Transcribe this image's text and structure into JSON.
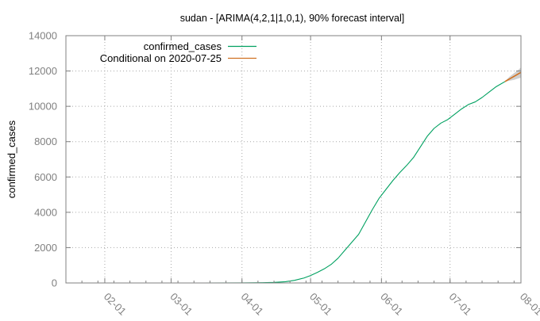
{
  "chart_data": {
    "type": "line",
    "title": "sudan -  [ARIMA(4,2,1|1,0,1), 90% forecast interval]",
    "xlabel": "",
    "ylabel": "confirmed_cases",
    "x_type": "date",
    "xlim": [
      "2020-01-15",
      "2020-08-01"
    ],
    "ylim": [
      0,
      14000
    ],
    "y_ticks": [
      0,
      2000,
      4000,
      6000,
      8000,
      10000,
      12000,
      14000
    ],
    "y_tick_labels": [
      "0",
      "2000",
      "4000",
      "6000",
      "8000",
      "10000",
      "12000",
      "14000"
    ],
    "x_ticks": [
      "2020-02-01",
      "2020-03-01",
      "2020-04-01",
      "2020-05-01",
      "2020-06-01",
      "2020-07-01",
      "2020-08-01"
    ],
    "x_tick_labels": [
      "02-01",
      "03-01",
      "04-01",
      "05-01",
      "06-01",
      "07-01",
      "08-01"
    ],
    "grid": true,
    "legend_position": "top-left",
    "series": [
      {
        "name": "confirmed_cases",
        "color": "#00a060",
        "points": [
          [
            "2020-01-15",
            0
          ],
          [
            "2020-03-13",
            0
          ],
          [
            "2020-04-01",
            5
          ],
          [
            "2020-04-10",
            15
          ],
          [
            "2020-04-15",
            30
          ],
          [
            "2020-04-20",
            70
          ],
          [
            "2020-04-24",
            150
          ],
          [
            "2020-04-28",
            275
          ],
          [
            "2020-05-01",
            420
          ],
          [
            "2020-05-04",
            600
          ],
          [
            "2020-05-07",
            800
          ],
          [
            "2020-05-10",
            1050
          ],
          [
            "2020-05-13",
            1400
          ],
          [
            "2020-05-16",
            1850
          ],
          [
            "2020-05-19",
            2300
          ],
          [
            "2020-05-22",
            2750
          ],
          [
            "2020-05-25",
            3450
          ],
          [
            "2020-05-28",
            4150
          ],
          [
            "2020-05-31",
            4800
          ],
          [
            "2020-06-03",
            5300
          ],
          [
            "2020-06-06",
            5800
          ],
          [
            "2020-06-09",
            6250
          ],
          [
            "2020-06-12",
            6650
          ],
          [
            "2020-06-15",
            7100
          ],
          [
            "2020-06-18",
            7700
          ],
          [
            "2020-06-21",
            8300
          ],
          [
            "2020-06-24",
            8750
          ],
          [
            "2020-06-27",
            9050
          ],
          [
            "2020-06-30",
            9250
          ],
          [
            "2020-07-03",
            9550
          ],
          [
            "2020-07-06",
            9850
          ],
          [
            "2020-07-09",
            10100
          ],
          [
            "2020-07-12",
            10250
          ],
          [
            "2020-07-15",
            10500
          ],
          [
            "2020-07-18",
            10800
          ],
          [
            "2020-07-21",
            11100
          ],
          [
            "2020-07-25",
            11400
          ]
        ]
      },
      {
        "name": "Conditional on 2020-07-25",
        "color": "#d07020",
        "points": [
          [
            "2020-07-25",
            11400
          ],
          [
            "2020-07-27",
            11550
          ],
          [
            "2020-07-29",
            11700
          ],
          [
            "2020-07-31",
            11850
          ],
          [
            "2020-08-01",
            11920
          ]
        ],
        "interval_90": {
          "color": "#c8c8c8",
          "points": [
            [
              "2020-07-25",
              11400,
              11420
            ],
            [
              "2020-07-27",
              11450,
              11680
            ],
            [
              "2020-07-29",
              11500,
              11880
            ],
            [
              "2020-07-31",
              11580,
              12080
            ],
            [
              "2020-08-01",
              11620,
              12200
            ]
          ]
        }
      }
    ]
  }
}
